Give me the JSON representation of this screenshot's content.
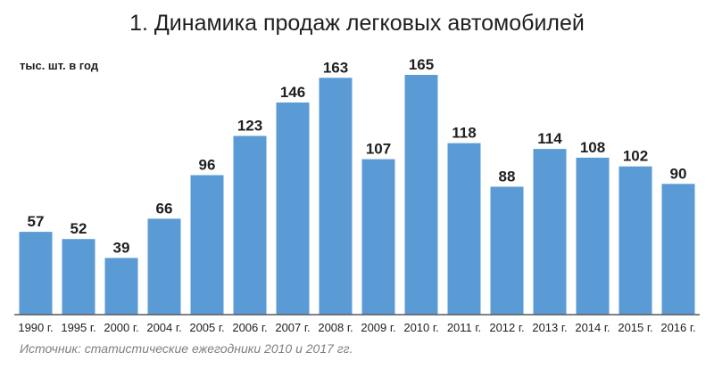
{
  "title": "1. Динамика продаж легковых автомобилей",
  "unit_label": "тыс. шт. в год",
  "source": "Источник: статистические ежегодники 2010 и 2017 гг.",
  "colors": {
    "bar": "#5b9bd5",
    "axis": "#595959",
    "text": "#1f1f1f"
  },
  "chart_data": {
    "type": "bar",
    "title": "1. Динамика продаж легковых автомобилей",
    "ylabel": "тыс. шт. в год",
    "xlabel": "",
    "grid": false,
    "ylim": [
      0,
      165
    ],
    "categories": [
      "1990 г.",
      "1995 г.",
      "2000 г.",
      "2004 г.",
      "2005 г.",
      "2006 г.",
      "2007 г.",
      "2008 г.",
      "2009 г.",
      "2010 г.",
      "2011 г.",
      "2012 г.",
      "2013 г.",
      "2014 г.",
      "2015 г.",
      "2016 г."
    ],
    "values": [
      57,
      52,
      39,
      66,
      96,
      123,
      146,
      163,
      107,
      165,
      118,
      88,
      114,
      108,
      102,
      90
    ]
  }
}
